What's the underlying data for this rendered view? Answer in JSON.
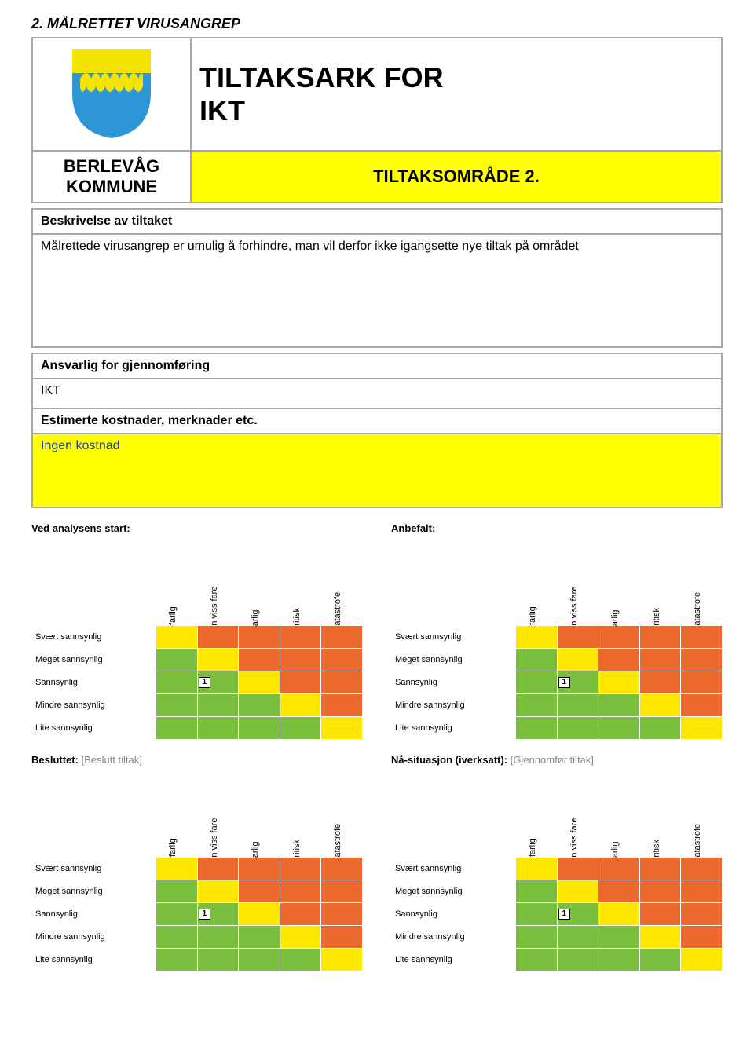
{
  "heading": "2.  MÅLRETTET VIRUSANGREP",
  "title_line1": "TILTAKSARK FOR",
  "title_line2": "IKT",
  "kommune_line1": "BERLEVÅG",
  "kommune_line2": "KOMMUNE",
  "omrade": "TILTAKSOMRÅDE 2.",
  "beskrivelse_head": "Beskrivelse av tiltaket",
  "beskrivelse_body": "Målrettede virusangrep er umulig å forhindre, man vil derfor ikke igangsette nye tiltak på området",
  "ansvarlig_head": "Ansvarlig for gjennomføring",
  "ansvarlig_body": "IKT",
  "estimerte_head": "Estimerte kostnader, merknader etc.",
  "estimerte_body": "Ingen kostnad",
  "logo": {
    "shield_fill": "#2d96d6",
    "top_band_fill": "#f5e400",
    "wave_fill": "#f5e400"
  },
  "colors": {
    "green": "#7bbf3f",
    "yellow": "#ffe800",
    "orange": "#ed6a2f"
  },
  "matrix": {
    "col_headers": [
      "Ufarlig",
      "En viss fare",
      "Farlig",
      "Kritisk",
      "Katastrofe"
    ],
    "row_labels": [
      "Svært sannsynlig",
      "Meget sannsynlig",
      "Sannsynlig",
      "Mindre sannsynlig",
      "Lite sannsynlig"
    ],
    "color_grid": [
      [
        "yellow",
        "orange",
        "orange",
        "orange",
        "orange"
      ],
      [
        "green",
        "yellow",
        "orange",
        "orange",
        "orange"
      ],
      [
        "green",
        "green",
        "yellow",
        "orange",
        "orange"
      ],
      [
        "green",
        "green",
        "green",
        "yellow",
        "orange"
      ],
      [
        "green",
        "green",
        "green",
        "green",
        "yellow"
      ]
    ],
    "blocks": [
      {
        "title": "Ved analysens start:",
        "muted": "",
        "marker": {
          "row": 2,
          "col": 1,
          "label": "1"
        }
      },
      {
        "title": "Anbefalt:",
        "muted": "",
        "marker": {
          "row": 2,
          "col": 1,
          "label": "1"
        }
      },
      {
        "title": "Besluttet: ",
        "muted": "[Beslutt tiltak]",
        "marker": {
          "row": 2,
          "col": 1,
          "label": "1"
        }
      },
      {
        "title": "Nå-situasjon (iverksatt): ",
        "muted": "[Gjennomfør tiltak]",
        "marker": {
          "row": 2,
          "col": 1,
          "label": "1"
        }
      }
    ]
  }
}
